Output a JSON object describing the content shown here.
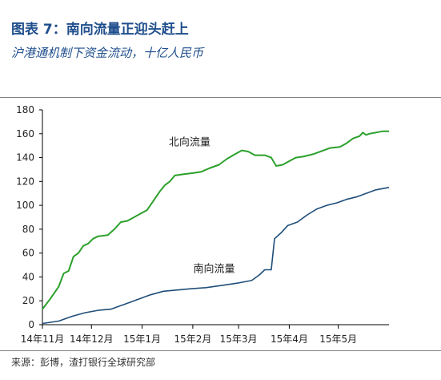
{
  "header": {
    "title": "图表 7：南向流量正迎头赶上",
    "subtitle": "沪港通机制下资金流动，十亿人民币"
  },
  "footer": {
    "source": "来源：彭博，渣打银行全球研究部"
  },
  "colors": {
    "title": "#1f4e8c",
    "northbound": "#2ca02c",
    "southbound": "#1f4e79"
  },
  "chart_data": {
    "type": "line",
    "title": "沪港通机制下资金流动，十亿人民币",
    "ylim": [
      0,
      180
    ],
    "yticks": [
      0,
      20,
      40,
      60,
      80,
      100,
      120,
      140,
      160,
      180
    ],
    "xlim": [
      0,
      212
    ],
    "xticks": [
      {
        "label": "14年11月",
        "x": 0
      },
      {
        "label": "14年12月",
        "x": 30
      },
      {
        "label": "15年1月",
        "x": 61
      },
      {
        "label": "15年2月",
        "x": 92
      },
      {
        "label": "15年3月",
        "x": 120
      },
      {
        "label": "15年4月",
        "x": 151
      },
      {
        "label": "15年5月",
        "x": 181
      }
    ],
    "grid": false,
    "series": [
      {
        "name": "北向流量",
        "color": "#2ca02c",
        "label_at": {
          "x": 90,
          "y": 150
        },
        "points": [
          [
            0,
            13
          ],
          [
            5,
            22
          ],
          [
            10,
            32
          ],
          [
            13,
            43
          ],
          [
            16,
            45
          ],
          [
            19,
            57
          ],
          [
            22,
            60
          ],
          [
            25,
            66
          ],
          [
            28,
            68
          ],
          [
            31,
            72
          ],
          [
            34,
            74
          ],
          [
            40,
            75
          ],
          [
            44,
            80
          ],
          [
            48,
            86
          ],
          [
            52,
            87
          ],
          [
            56,
            90
          ],
          [
            60,
            93
          ],
          [
            64,
            96
          ],
          [
            68,
            104
          ],
          [
            72,
            112
          ],
          [
            75,
            117
          ],
          [
            78,
            120
          ],
          [
            81,
            125
          ],
          [
            86,
            126
          ],
          [
            92,
            127
          ],
          [
            97,
            128
          ],
          [
            102,
            131
          ],
          [
            108,
            134
          ],
          [
            113,
            139
          ],
          [
            118,
            143
          ],
          [
            122,
            146
          ],
          [
            126,
            145
          ],
          [
            130,
            142
          ],
          [
            136,
            142
          ],
          [
            140,
            140
          ],
          [
            143,
            133
          ],
          [
            147,
            134
          ],
          [
            151,
            137
          ],
          [
            155,
            140
          ],
          [
            160,
            141
          ],
          [
            166,
            143
          ],
          [
            172,
            146
          ],
          [
            176,
            148
          ],
          [
            182,
            149
          ],
          [
            186,
            152
          ],
          [
            190,
            156
          ],
          [
            194,
            158
          ],
          [
            196,
            161
          ],
          [
            198,
            159
          ],
          [
            200,
            160
          ],
          [
            204,
            161
          ],
          [
            208,
            162
          ],
          [
            212,
            162
          ]
        ]
      },
      {
        "name": "南向流量",
        "color": "#1f4e79",
        "label_at": {
          "x": 105,
          "y": 44
        },
        "points": [
          [
            0,
            1
          ],
          [
            10,
            3
          ],
          [
            18,
            7
          ],
          [
            26,
            10
          ],
          [
            34,
            12
          ],
          [
            42,
            13
          ],
          [
            50,
            17
          ],
          [
            58,
            21
          ],
          [
            66,
            25
          ],
          [
            74,
            28
          ],
          [
            82,
            29
          ],
          [
            90,
            30
          ],
          [
            100,
            31
          ],
          [
            110,
            33
          ],
          [
            120,
            35
          ],
          [
            128,
            37
          ],
          [
            133,
            42
          ],
          [
            136,
            46
          ],
          [
            140,
            46
          ],
          [
            142,
            72
          ],
          [
            146,
            77
          ],
          [
            150,
            83
          ],
          [
            156,
            86
          ],
          [
            162,
            92
          ],
          [
            168,
            97
          ],
          [
            174,
            100
          ],
          [
            180,
            102
          ],
          [
            186,
            105
          ],
          [
            192,
            107
          ],
          [
            198,
            110
          ],
          [
            204,
            113
          ],
          [
            208,
            114
          ],
          [
            212,
            115
          ]
        ]
      }
    ]
  }
}
